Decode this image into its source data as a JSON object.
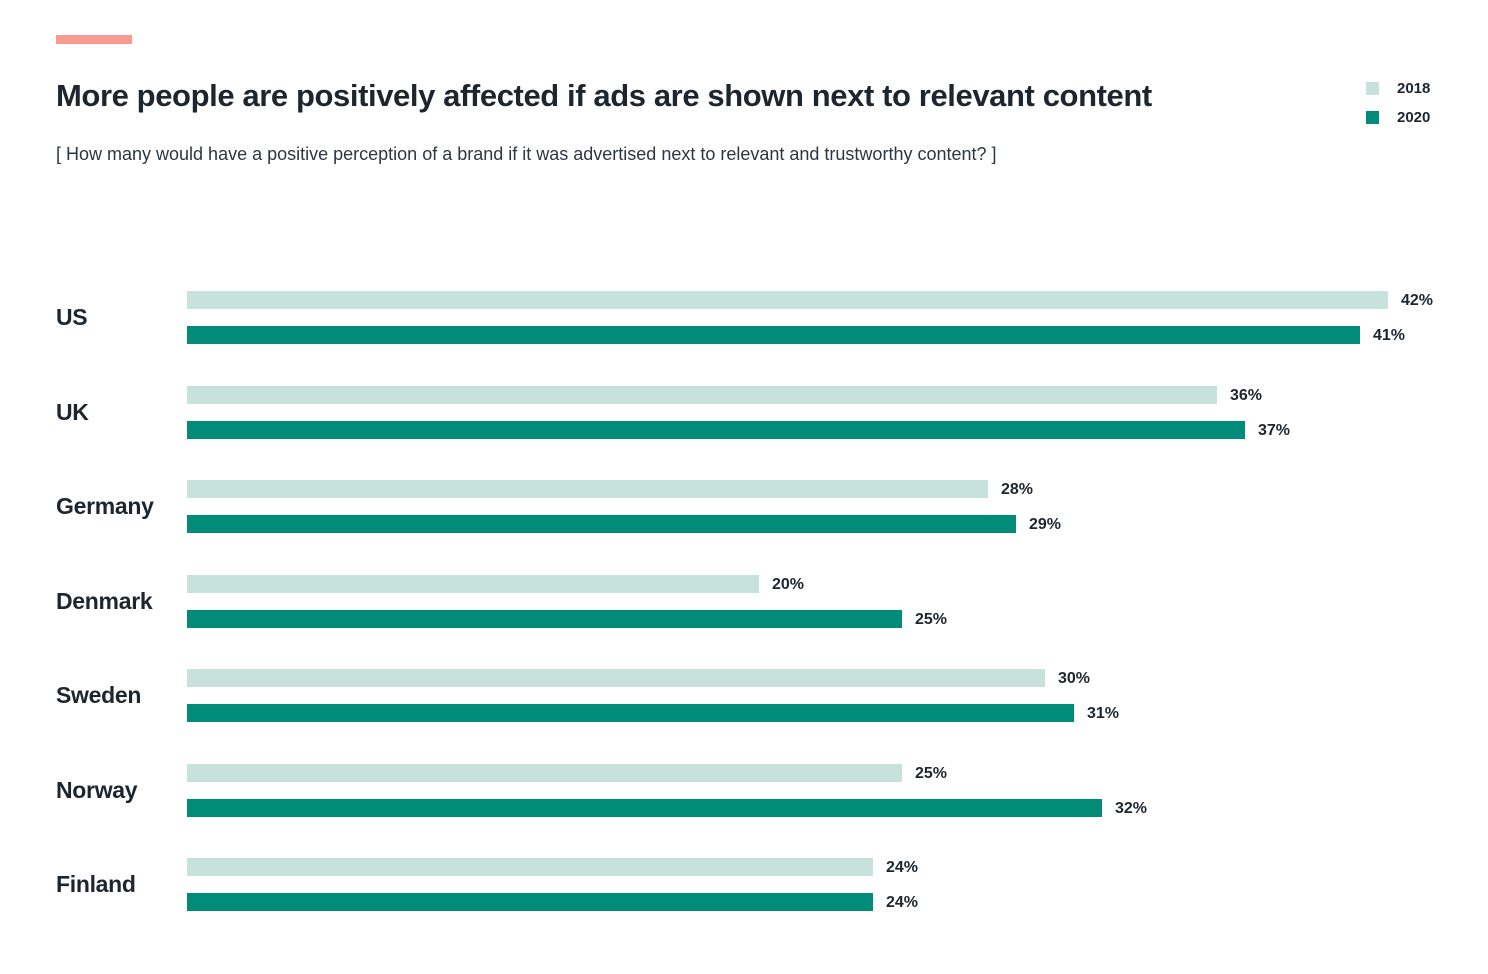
{
  "header": {
    "title": "More people are positively affected if ads are shown next to relevant content",
    "subtitle": "[ How many would have a positive perception of a brand if it was advertised next to relevant and trustworthy content? ]"
  },
  "colors": {
    "accent_dash": "#f89a90",
    "series_2018": "#c6e2db",
    "series_2020": "#008c78",
    "text": "#1d262e"
  },
  "legend": {
    "position": "top-right",
    "items": [
      {
        "label": "2018",
        "color": "#c6e2db"
      },
      {
        "label": "2020",
        "color": "#008c78"
      }
    ]
  },
  "chart_data": {
    "type": "bar",
    "orientation": "horizontal",
    "title": "More people are positively affected if ads are shown next to relevant content",
    "categories": [
      "US",
      "UK",
      "Germany",
      "Denmark",
      "Sweden",
      "Norway",
      "Finland"
    ],
    "series": [
      {
        "name": "2018",
        "color": "#c6e2db",
        "values": [
          42,
          36,
          28,
          20,
          30,
          25,
          24
        ]
      },
      {
        "name": "2020",
        "color": "#008c78",
        "values": [
          41,
          37,
          29,
          25,
          31,
          32,
          24
        ]
      }
    ],
    "value_suffix": "%",
    "xlim": [
      0,
      42
    ],
    "grid": false,
    "data_labels": true
  }
}
